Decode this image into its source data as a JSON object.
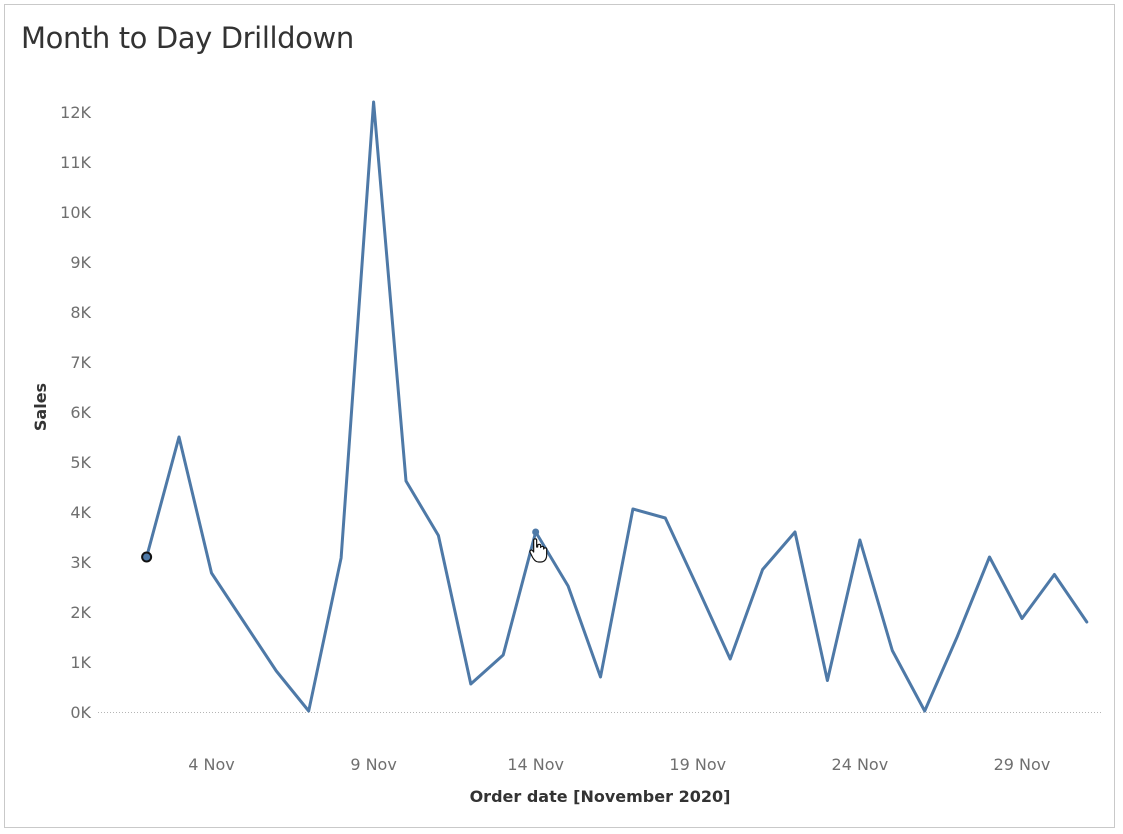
{
  "title": "Month to Day Drilldown",
  "chart_data": {
    "type": "line",
    "title": "Month to Day Drilldown",
    "xlabel": "Order date [November 2020]",
    "ylabel": "Sales",
    "x_tick_labels": [
      {
        "day": 4,
        "label": "4 Nov"
      },
      {
        "day": 9,
        "label": "9 Nov"
      },
      {
        "day": 14,
        "label": "14 Nov"
      },
      {
        "day": 19,
        "label": "19 Nov"
      },
      {
        "day": 24,
        "label": "24 Nov"
      },
      {
        "day": 29,
        "label": "29 Nov"
      }
    ],
    "y_tick_labels": [
      {
        "value": 0,
        "label": "0K"
      },
      {
        "value": 1000,
        "label": "1K"
      },
      {
        "value": 2000,
        "label": "2K"
      },
      {
        "value": 3000,
        "label": "3K"
      },
      {
        "value": 4000,
        "label": "4K"
      },
      {
        "value": 5000,
        "label": "5K"
      },
      {
        "value": 6000,
        "label": "6K"
      },
      {
        "value": 7000,
        "label": "7K"
      },
      {
        "value": 8000,
        "label": "8K"
      },
      {
        "value": 9000,
        "label": "9K"
      },
      {
        "value": 10000,
        "label": "10K"
      },
      {
        "value": 11000,
        "label": "11K"
      },
      {
        "value": 12000,
        "label": "12K"
      }
    ],
    "xlim": [
      0.5,
      31.5
    ],
    "ylim": [
      0,
      12200
    ],
    "grid": false,
    "zero_line": true,
    "line_color": "#4e79a7",
    "series": [
      {
        "x": [
          2,
          3,
          4,
          5,
          6,
          7,
          8,
          9,
          10,
          11,
          12,
          13,
          14,
          15,
          16,
          17,
          18,
          19,
          20,
          21,
          22,
          23,
          24,
          25,
          26,
          27,
          28,
          29,
          30,
          31
        ],
        "values": [
          3100,
          5500,
          2780,
          1800,
          820,
          20,
          3080,
          12200,
          4620,
          3530,
          560,
          1140,
          3600,
          2520,
          700,
          4060,
          3880,
          2480,
          1060,
          2850,
          3600,
          630,
          3440,
          1230,
          20,
          1500,
          3100,
          1870,
          2750,
          1800
        ]
      }
    ],
    "highlighted_points": [
      {
        "x": 2,
        "value": 3100
      },
      {
        "x": 14,
        "value": 3600
      }
    ]
  }
}
